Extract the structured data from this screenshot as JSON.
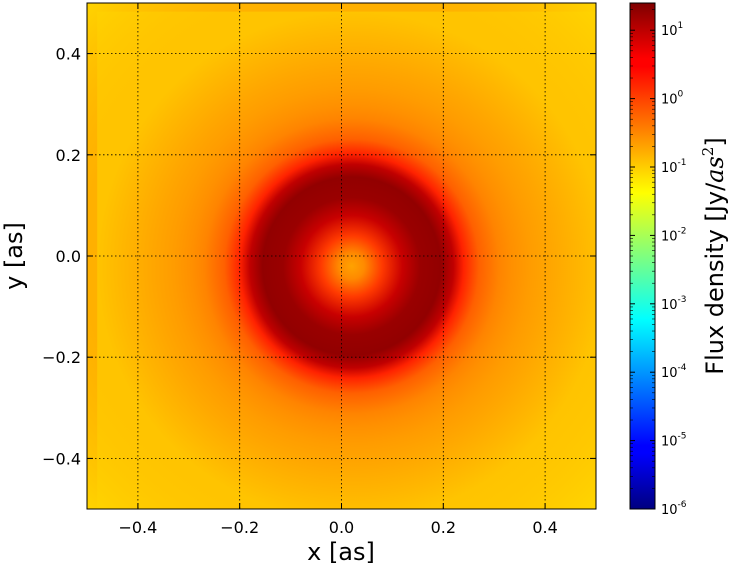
{
  "chart_data": {
    "type": "heatmap",
    "title": "",
    "xlabel": "x [as]",
    "ylabel": "y [as]",
    "xlim": [
      -0.5,
      0.5
    ],
    "ylim": [
      -0.5,
      0.5
    ],
    "x_ticks": [
      -0.4,
      -0.2,
      0.0,
      0.2,
      0.4
    ],
    "y_ticks": [
      -0.4,
      -0.2,
      0.0,
      0.2,
      0.4
    ],
    "x_tick_labels": [
      "−0.4",
      "−0.2",
      "0.0",
      "0.2",
      "0.4"
    ],
    "y_tick_labels": [
      "−0.4",
      "−0.2",
      "0.0",
      "0.2",
      "0.4"
    ],
    "grid": true,
    "colormap": "jet",
    "colorbar": {
      "label_prefix": "Flux density [Jy/",
      "label_math": "as",
      "label_exp": "2",
      "label_suffix": "]",
      "scale": "log",
      "range": [
        1e-06,
        25
      ],
      "ticks": [
        {
          "value": 1e-06,
          "base": "10",
          "exp": "-6"
        },
        {
          "value": 1e-05,
          "base": "10",
          "exp": "-5"
        },
        {
          "value": 0.0001,
          "base": "10",
          "exp": "-4"
        },
        {
          "value": 0.001,
          "base": "10",
          "exp": "-3"
        },
        {
          "value": 0.01,
          "base": "10",
          "exp": "-2"
        },
        {
          "value": 0.1,
          "base": "10",
          "exp": "-1"
        },
        {
          "value": 1,
          "base": "10",
          "exp": "0"
        },
        {
          "value": 10,
          "base": "10",
          "exp": "1"
        }
      ]
    },
    "image_description_values": {
      "ring_center": [
        0.0,
        0.0
      ],
      "ring_peak_radius_as": 0.15,
      "peak_flux": 20,
      "center_flux": 3,
      "background_flux": 0.3
    }
  }
}
